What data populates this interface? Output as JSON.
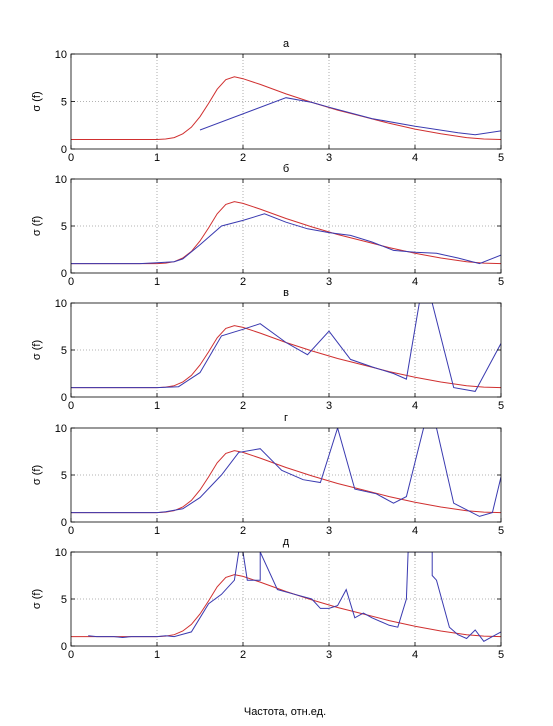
{
  "figure": {
    "xlabel": "Частота, отн.ед.",
    "ylabel": "σ (f)"
  },
  "colors": {
    "red": "#d03030",
    "blue": "#3a3ab0",
    "axis": "#000000",
    "grid": "#9a9a9a"
  },
  "chart_data": [
    {
      "type": "line",
      "title": "а",
      "xlabel": "",
      "ylabel": "σ (f)",
      "xlim": [
        0,
        5
      ],
      "ylim": [
        0,
        10
      ],
      "xticks": [
        "0",
        "1",
        "2",
        "3",
        "4",
        "5"
      ],
      "yticks": [
        "0",
        "5",
        "10"
      ],
      "grid": true,
      "series": [
        {
          "color": "red",
          "x": [
            0,
            1.0,
            1.1,
            1.2,
            1.3,
            1.4,
            1.5,
            1.6,
            1.7,
            1.8,
            1.9,
            2.0,
            2.2,
            2.5,
            2.8,
            3.1,
            3.4,
            3.7,
            4.0,
            4.3,
            4.6,
            4.8,
            5.0
          ],
          "y": [
            1,
            1,
            1.05,
            1.2,
            1.6,
            2.3,
            3.4,
            4.8,
            6.3,
            7.3,
            7.6,
            7.4,
            6.8,
            5.8,
            4.9,
            4.1,
            3.4,
            2.7,
            2.1,
            1.6,
            1.2,
            1.05,
            1
          ]
        },
        {
          "color": "blue",
          "x": [
            1.5,
            2.5,
            2.8,
            3.0,
            3.5,
            4.0,
            4.5,
            4.7,
            5.0
          ],
          "y": [
            2.0,
            5.4,
            4.9,
            4.4,
            3.2,
            2.4,
            1.7,
            1.5,
            1.9
          ]
        }
      ]
    },
    {
      "type": "line",
      "title": "б",
      "xlabel": "",
      "ylabel": "σ (f)",
      "xlim": [
        0,
        5
      ],
      "ylim": [
        0,
        10
      ],
      "xticks": [
        "0",
        "1",
        "2",
        "3",
        "4",
        "5"
      ],
      "yticks": [
        "0",
        "5",
        "10"
      ],
      "grid": true,
      "series": [
        {
          "color": "red",
          "x": [
            0,
            1.0,
            1.1,
            1.2,
            1.3,
            1.4,
            1.5,
            1.6,
            1.7,
            1.8,
            1.9,
            2.0,
            2.2,
            2.5,
            2.8,
            3.1,
            3.4,
            3.7,
            4.0,
            4.3,
            4.6,
            4.8,
            5.0
          ],
          "y": [
            1,
            1,
            1.05,
            1.2,
            1.6,
            2.3,
            3.4,
            4.8,
            6.3,
            7.3,
            7.6,
            7.4,
            6.8,
            5.8,
            4.9,
            4.1,
            3.4,
            2.7,
            2.1,
            1.6,
            1.2,
            1.05,
            1
          ]
        },
        {
          "color": "blue",
          "x": [
            0,
            0.8,
            1.0,
            1.2,
            1.3,
            1.5,
            1.75,
            2.0,
            2.25,
            2.5,
            2.75,
            3.0,
            3.25,
            3.5,
            3.75,
            4.0,
            4.25,
            4.5,
            4.75,
            5.0
          ],
          "y": [
            1,
            1,
            1.1,
            1.2,
            1.5,
            3.0,
            5.0,
            5.6,
            6.3,
            5.4,
            4.7,
            4.3,
            4.0,
            3.3,
            2.4,
            2.2,
            2.1,
            1.6,
            1.0,
            1.9
          ]
        }
      ]
    },
    {
      "type": "line",
      "title": "в",
      "xlabel": "",
      "ylabel": "σ (f)",
      "xlim": [
        0,
        5
      ],
      "ylim": [
        0,
        10
      ],
      "xticks": [
        "0",
        "1",
        "2",
        "3",
        "4",
        "5"
      ],
      "yticks": [
        "0",
        "5",
        "10"
      ],
      "grid": true,
      "series": [
        {
          "color": "red",
          "x": [
            0,
            1.0,
            1.1,
            1.2,
            1.3,
            1.4,
            1.5,
            1.6,
            1.7,
            1.8,
            1.9,
            2.0,
            2.2,
            2.5,
            2.8,
            3.1,
            3.4,
            3.7,
            4.0,
            4.3,
            4.6,
            4.8,
            5.0
          ],
          "y": [
            1,
            1,
            1.05,
            1.2,
            1.6,
            2.3,
            3.4,
            4.8,
            6.3,
            7.3,
            7.6,
            7.4,
            6.8,
            5.8,
            4.9,
            4.1,
            3.4,
            2.7,
            2.1,
            1.6,
            1.2,
            1.05,
            1
          ]
        },
        {
          "color": "blue",
          "x": [
            0,
            1.0,
            1.25,
            1.5,
            1.75,
            2.0,
            2.2,
            2.5,
            2.75,
            3.0,
            3.25,
            3.5,
            3.75,
            3.9,
            4.05,
            4.2,
            4.45,
            4.7,
            5.0
          ],
          "y": [
            1,
            1,
            1.1,
            2.6,
            6.5,
            7.2,
            7.8,
            5.8,
            4.5,
            7.0,
            4.0,
            3.2,
            2.5,
            1.9,
            10.0,
            10.0,
            1.0,
            0.6,
            5.7
          ]
        }
      ]
    },
    {
      "type": "line",
      "title": "г",
      "xlabel": "",
      "ylabel": "σ (f)",
      "xlim": [
        0,
        5
      ],
      "ylim": [
        0,
        10
      ],
      "xticks": [
        "0",
        "1",
        "2",
        "3",
        "4",
        "5"
      ],
      "yticks": [
        "0",
        "5",
        "10"
      ],
      "grid": true,
      "series": [
        {
          "color": "red",
          "x": [
            0,
            1.0,
            1.1,
            1.2,
            1.3,
            1.4,
            1.5,
            1.6,
            1.7,
            1.8,
            1.9,
            2.0,
            2.2,
            2.5,
            2.8,
            3.1,
            3.4,
            3.7,
            4.0,
            4.3,
            4.6,
            4.8,
            5.0
          ],
          "y": [
            1,
            1,
            1.05,
            1.2,
            1.6,
            2.3,
            3.4,
            4.8,
            6.3,
            7.3,
            7.6,
            7.4,
            6.8,
            5.8,
            4.9,
            4.1,
            3.4,
            2.7,
            2.1,
            1.6,
            1.2,
            1.05,
            1
          ]
        },
        {
          "color": "blue",
          "x": [
            0,
            1.0,
            1.1,
            1.3,
            1.5,
            1.75,
            1.95,
            2.2,
            2.45,
            2.7,
            2.9,
            3.1,
            3.3,
            3.55,
            3.75,
            3.9,
            4.1,
            4.25,
            4.45,
            4.75,
            4.9,
            5.0
          ],
          "y": [
            1,
            1,
            1.1,
            1.4,
            2.6,
            5.0,
            7.4,
            7.8,
            5.5,
            4.5,
            4.2,
            10.0,
            3.5,
            3.0,
            2.0,
            2.7,
            10.0,
            10.0,
            2.0,
            0.6,
            1.0,
            4.8
          ]
        }
      ]
    },
    {
      "type": "line",
      "title": "д",
      "xlabel": "Частота, отн.ед.",
      "ylabel": "σ (f)",
      "xlim": [
        0,
        5
      ],
      "ylim": [
        0,
        10
      ],
      "xticks": [
        "0",
        "1",
        "2",
        "3",
        "4",
        "5"
      ],
      "yticks": [
        "0",
        "5",
        "10"
      ],
      "grid": true,
      "series": [
        {
          "color": "red",
          "x": [
            0,
            1.0,
            1.1,
            1.2,
            1.3,
            1.4,
            1.5,
            1.6,
            1.7,
            1.8,
            1.9,
            2.0,
            2.2,
            2.5,
            2.8,
            3.1,
            3.4,
            3.7,
            4.0,
            4.3,
            4.6,
            4.8,
            5.0
          ],
          "y": [
            1,
            1,
            1.05,
            1.2,
            1.6,
            2.3,
            3.4,
            4.8,
            6.3,
            7.3,
            7.6,
            7.4,
            6.8,
            5.8,
            4.9,
            4.1,
            3.4,
            2.7,
            2.1,
            1.6,
            1.2,
            1.05,
            1
          ]
        },
        {
          "color": "blue",
          "x": [
            0.2,
            0.3,
            0.5,
            0.6,
            0.7,
            1.0,
            1.1,
            1.2,
            1.4,
            1.6,
            1.75,
            1.9,
            1.95,
            2.0,
            2.05,
            2.2,
            2.2,
            2.4,
            2.6,
            2.8,
            2.9,
            3.0,
            3.1,
            3.2,
            3.3,
            3.4,
            3.5,
            3.7,
            3.8,
            3.9,
            3.92,
            3.95,
            4.2,
            4.2,
            4.25,
            4.4,
            4.5,
            4.6,
            4.7,
            4.8,
            4.9,
            5.0
          ],
          "y": [
            1.1,
            1.0,
            1.0,
            0.9,
            1.0,
            1.0,
            1.1,
            1.0,
            1.5,
            4.5,
            5.5,
            7.0,
            10.0,
            10.0,
            7.0,
            7.0,
            10.0,
            6.0,
            5.5,
            5.0,
            4.0,
            4.0,
            4.3,
            6.0,
            3.0,
            3.5,
            3.0,
            2.2,
            2.0,
            5.0,
            10.0,
            10.0,
            10.0,
            7.5,
            7.0,
            2.0,
            1.2,
            0.8,
            1.7,
            0.5,
            1.0,
            1.5
          ]
        }
      ]
    }
  ]
}
